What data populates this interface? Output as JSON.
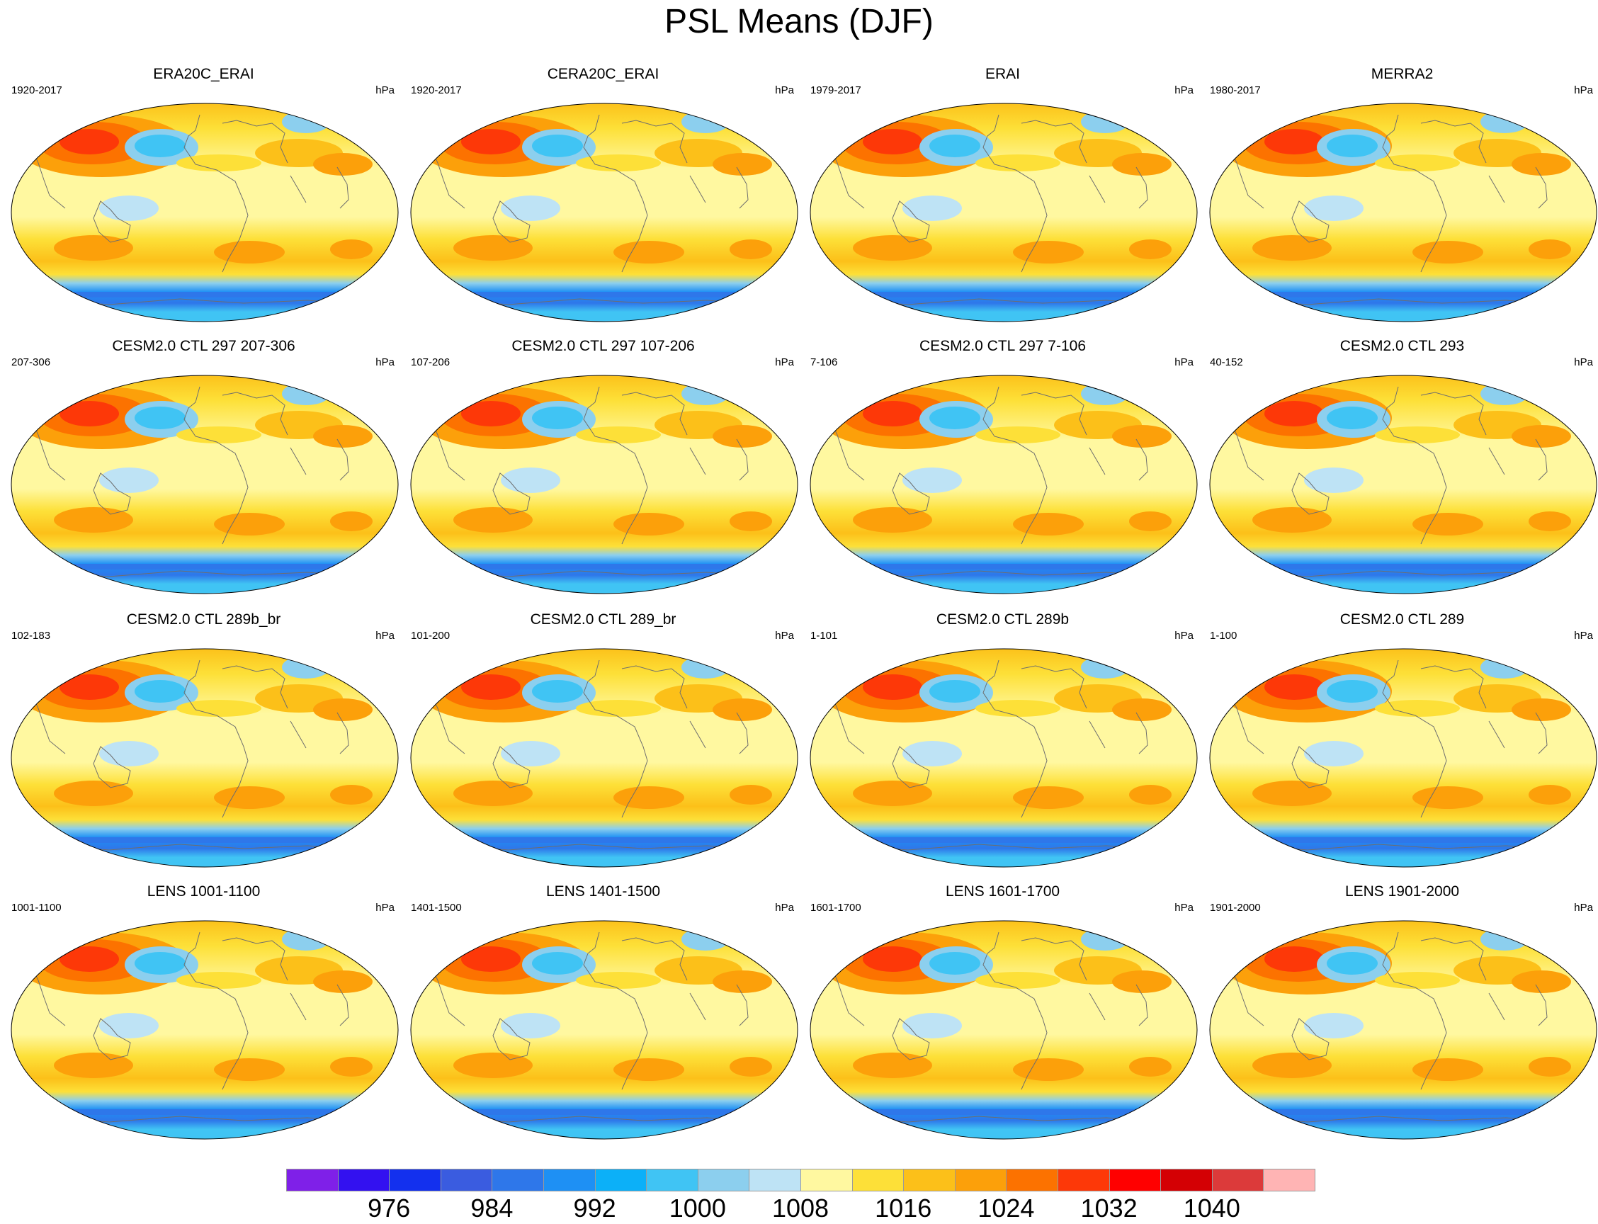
{
  "title": "PSL Means (DJF)",
  "units_label": "hPa",
  "panels": [
    {
      "title": "ERA20C_ERAI",
      "period": "1920-2017"
    },
    {
      "title": "CERA20C_ERAI",
      "period": "1920-2017"
    },
    {
      "title": "ERAI",
      "period": "1979-2017"
    },
    {
      "title": "MERRA2",
      "period": "1980-2017"
    },
    {
      "title": "CESM2.0 CTL 297 207-306",
      "period": "207-306"
    },
    {
      "title": "CESM2.0 CTL 297 107-206",
      "period": "107-206"
    },
    {
      "title": "CESM2.0 CTL 297 7-106",
      "period": "7-106"
    },
    {
      "title": "CESM2.0 CTL 293",
      "period": "40-152"
    },
    {
      "title": "CESM2.0 CTL 289b_br",
      "period": "102-183"
    },
    {
      "title": "CESM2.0 CTL 289_br",
      "period": "101-200"
    },
    {
      "title": "CESM2.0 CTL 289b",
      "period": "1-101"
    },
    {
      "title": "CESM2.0 CTL 289",
      "period": "1-100"
    },
    {
      "title": "LENS 1001-1100",
      "period": "1001-1100"
    },
    {
      "title": "LENS 1401-1500",
      "period": "1401-1500"
    },
    {
      "title": "LENS 1601-1700",
      "period": "1601-1700"
    },
    {
      "title": "LENS 1901-2000",
      "period": "1901-2000"
    }
  ],
  "colorbar": {
    "colors": [
      "#7f20e8",
      "#3311f0",
      "#1330ee",
      "#3a5ce0",
      "#2e77ea",
      "#1e90f4",
      "#0cb0f8",
      "#40c4f4",
      "#8ccfee",
      "#bee3f5",
      "#fff8a0",
      "#fde038",
      "#fcc019",
      "#fca00a",
      "#fc7200",
      "#fd3808",
      "#ff0000",
      "#d40004",
      "#dc3a3a",
      "#ffb4b4"
    ],
    "labels": [
      "976",
      "984",
      "992",
      "1000",
      "1008",
      "1016",
      "1024",
      "1032",
      "1040"
    ]
  }
}
